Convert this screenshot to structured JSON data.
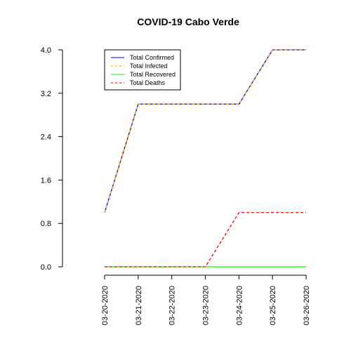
{
  "chart_data": {
    "type": "line",
    "title": "COVID-19 Cabo Verde",
    "xlabel": "",
    "ylabel": "",
    "x": [
      "03-20-2020",
      "03-21-2020",
      "03-22-2020",
      "03-23-2020",
      "03-24-2020",
      "03-25-2020",
      "03-26-2020"
    ],
    "ylim": [
      0,
      4
    ],
    "yticks": [
      "0.0",
      "0.8",
      "1.6",
      "2.4",
      "3.2",
      "4.0"
    ],
    "legend_position": "top-left",
    "grid": false,
    "series": [
      {
        "name": "Total Confirmed",
        "values": [
          1,
          3,
          3,
          3,
          3,
          4,
          4
        ],
        "color": "#0000ff",
        "style": "solid"
      },
      {
        "name": "Total Infected",
        "values": [
          1,
          3,
          3,
          3,
          3,
          4,
          4
        ],
        "color": "#ffa500",
        "style": "dashed"
      },
      {
        "name": "Total Recovered",
        "values": [
          0,
          0,
          0,
          0,
          0,
          0,
          0
        ],
        "color": "#00ff00",
        "style": "solid"
      },
      {
        "name": "Total Deaths",
        "values": [
          0,
          0,
          0,
          0,
          1,
          1,
          1
        ],
        "color": "#ff0000",
        "style": "dashed"
      }
    ]
  }
}
